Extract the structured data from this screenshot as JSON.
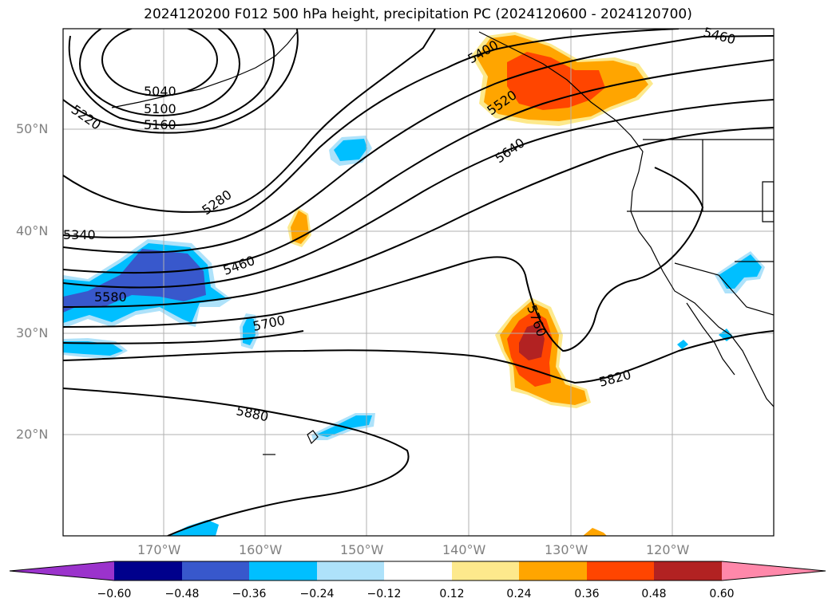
{
  "title": "2024120200 F012 500 hPa height, precipitation PC (2024120600 - 2024120700)",
  "map": {
    "lon_labels": [
      "170°W",
      "160°W",
      "150°W",
      "140°W",
      "130°W",
      "120°W"
    ],
    "lat_labels": [
      "50°N",
      "40°N",
      "30°N",
      "20°N"
    ],
    "contour_labels": [
      "5040",
      "5100",
      "5160",
      "5220",
      "5280",
      "5340",
      "5400",
      "5460",
      "5460",
      "5520",
      "5580",
      "5640",
      "5700",
      "5760",
      "5820",
      "5880"
    ]
  },
  "colorbar": {
    "ticks": [
      "−0.60",
      "−0.48",
      "−0.36",
      "−0.24",
      "−0.12",
      "0.12",
      "0.24",
      "0.36",
      "0.48",
      "0.60"
    ],
    "colors": [
      "#9b33cc",
      "#00008c",
      "#3858cc",
      "#00bfff",
      "#aee2fa",
      "#ffffff",
      "#fde98c",
      "#ffa500",
      "#ff4500",
      "#b22222",
      "#ff88aa"
    ]
  }
}
